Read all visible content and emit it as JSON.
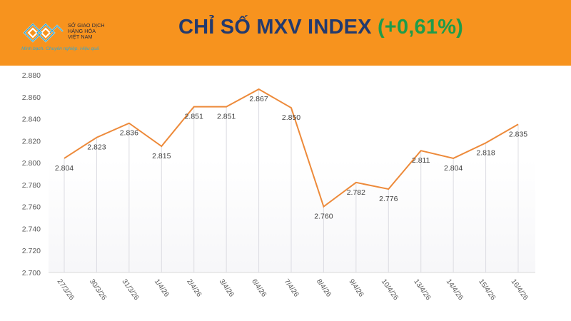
{
  "header": {
    "logo": {
      "line1": "SỞ GIAO DỊCH",
      "line2": "HÀNG HÓA",
      "line3": "VIỆT NAM",
      "slogan": "Minh bạch. Chuyên nghiệp. Hiệu quả"
    },
    "title": "CHỈ SỐ MXV INDEX",
    "change": "(+0,61%)",
    "colors": {
      "background": "#f7931e",
      "title": "#233a6e",
      "change": "#1f9c4a"
    }
  },
  "chart_data": {
    "type": "line",
    "title": "CHỈ SỐ MXV INDEX (+0,61%)",
    "xlabel": "",
    "ylabel": "",
    "categories": [
      "27/3/26",
      "30/3/26",
      "31/3/26",
      "1/4/26",
      "2/4/26",
      "3/4/26",
      "6/4/26",
      "7/4/26",
      "8/4/26",
      "9/4/26",
      "10/4/26",
      "13/4/26",
      "14/4/26",
      "15/4/26",
      "16/4/26"
    ],
    "values": [
      2804,
      2823,
      2836,
      2815,
      2851,
      2851,
      2867,
      2850,
      2760,
      2782,
      2776,
      2811,
      2804,
      2818,
      2835
    ],
    "data_labels": [
      "2.804",
      "2.823",
      "2.836",
      "2.815",
      "2.851",
      "2.851",
      "2.867",
      "2.850",
      "2.760",
      "2.782",
      "2.776",
      "2.811",
      "2.804",
      "2.818",
      "2.835"
    ],
    "ylim": [
      2700,
      2880
    ],
    "yticks": [
      2700,
      2720,
      2740,
      2760,
      2780,
      2800,
      2820,
      2840,
      2860,
      2880
    ],
    "ytick_labels": [
      "2.700",
      "2.720",
      "2.740",
      "2.760",
      "2.780",
      "2.800",
      "2.820",
      "2.840",
      "2.860",
      "2.880"
    ],
    "grid": "vertical lines at data points",
    "legend": "none",
    "line_color": "#ed8a3a"
  }
}
